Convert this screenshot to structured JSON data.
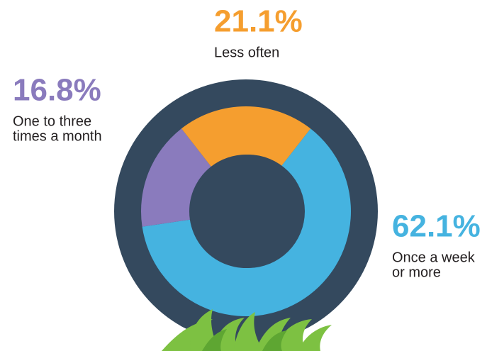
{
  "chart_data": {
    "type": "donut",
    "series": [
      {
        "name": [
          "Once a week",
          "or more"
        ],
        "color": "#45b3e0",
        "value": 62.1,
        "value_label": "62.1%"
      },
      {
        "name": [
          "One to three",
          "times a month"
        ],
        "color": "#8a7bbd",
        "value": 16.8,
        "value_label": "16.8%"
      },
      {
        "name": [
          "Less often"
        ],
        "color": "#f59e2f",
        "value": 21.1,
        "value_label": "21.1%"
      }
    ]
  }
}
